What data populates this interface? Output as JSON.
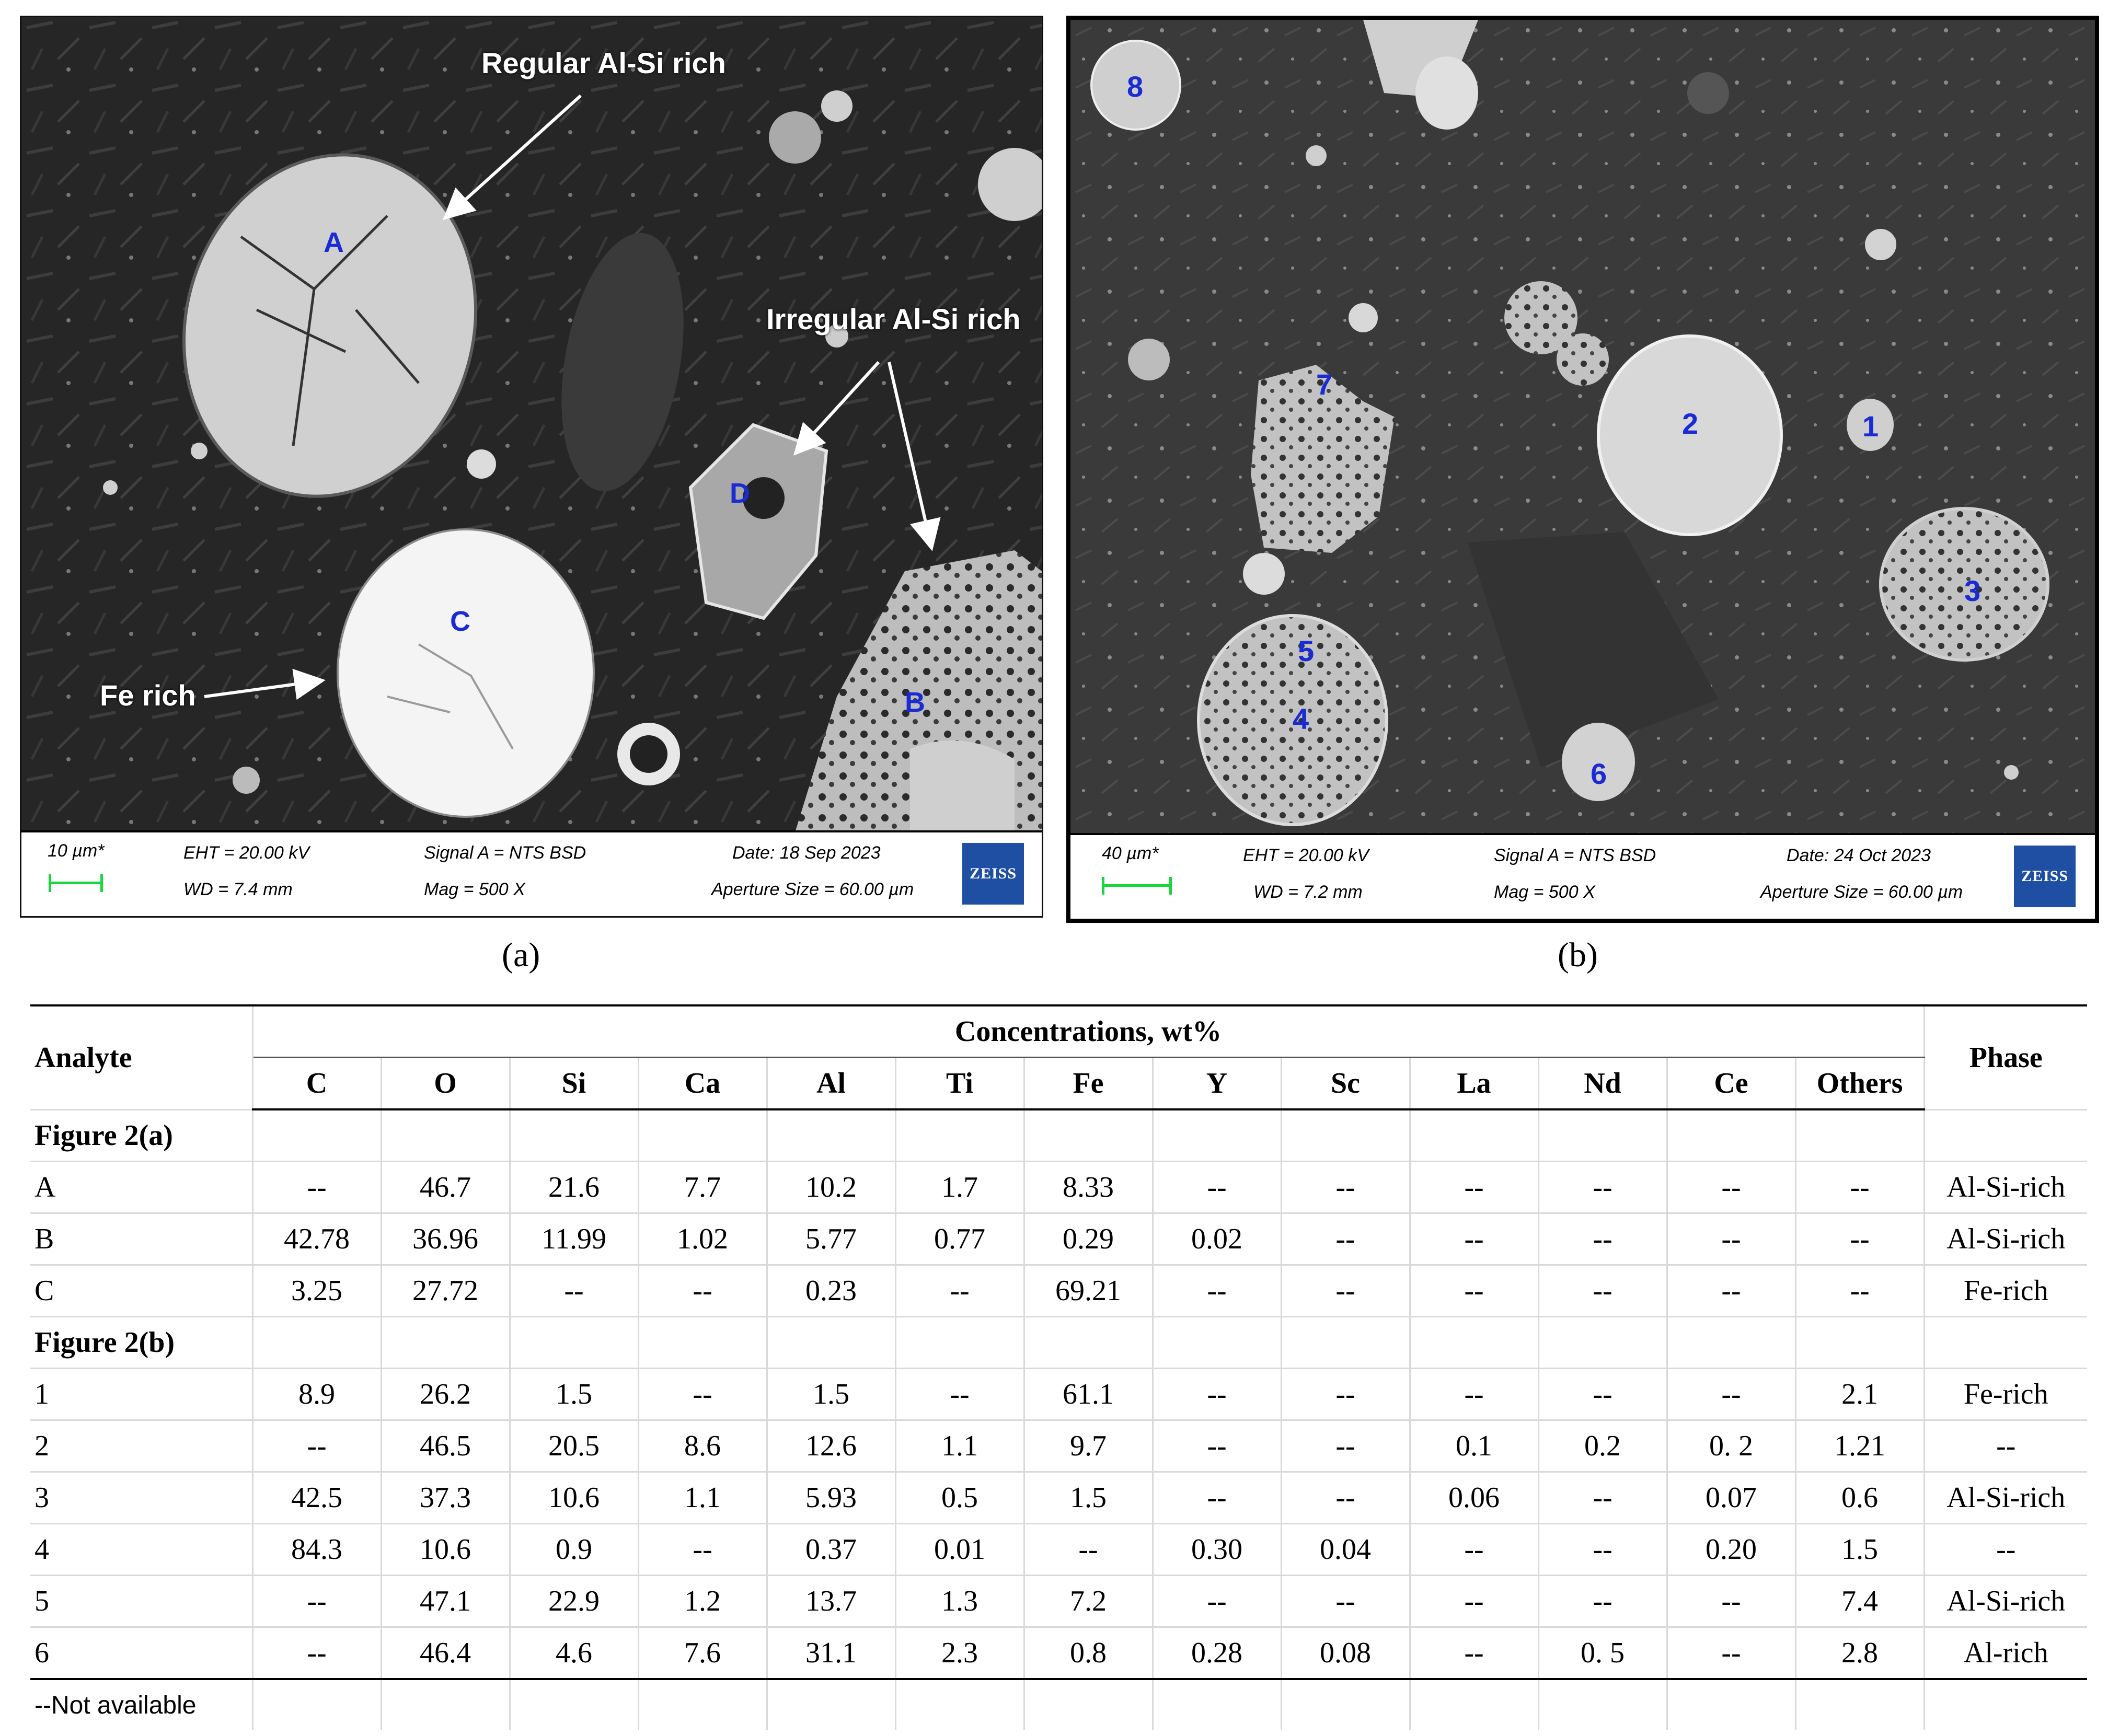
{
  "panel_a": {
    "callouts": {
      "regular": "Regular Al-Si rich",
      "irregular": "Irregular Al-Si rich",
      "fe_rich": "Fe rich"
    },
    "markers": [
      "A",
      "B",
      "C",
      "D"
    ],
    "databar": {
      "scale": "10 µm*",
      "eht": "EHT = 20.00 kV",
      "wd": "WD =  7.4 mm",
      "signal": "Signal A = NTS BSD",
      "mag": "Mag =   500 X",
      "date": "Date: 18 Sep 2023",
      "aperture": "Aperture Size = 60.00 µm",
      "logo": "ZEISS"
    },
    "caption": "(a)"
  },
  "panel_b": {
    "markers": [
      "1",
      "2",
      "3",
      "4",
      "5",
      "6",
      "7",
      "8"
    ],
    "databar": {
      "scale": "40 µm*",
      "eht": "EHT = 20.00 kV",
      "wd": "WD =  7.2 mm",
      "signal": "Signal A = NTS BSD",
      "mag": "Mag =   500 X",
      "date": "Date: 24 Oct 2023",
      "aperture": "Aperture Size = 60.00 µm",
      "logo": "ZEISS"
    },
    "caption": "(b)"
  },
  "table": {
    "header": {
      "analyte": "Analyte",
      "concentrations": "Concentrations, wt%",
      "phase": "Phase",
      "columns": [
        "C",
        "O",
        "Si",
        "Ca",
        "Al",
        "Ti",
        "Fe",
        "Y",
        "Sc",
        "La",
        "Nd",
        "Ce",
        "Others"
      ]
    },
    "sections": [
      {
        "title": "Figure 2(a)",
        "rows": [
          {
            "analyte": "A",
            "values": [
              "--",
              "46.7",
              "21.6",
              "7.7",
              "10.2",
              "1.7",
              "8.33",
              "--",
              "--",
              "--",
              "--",
              "--",
              "--"
            ],
            "phase": "Al-Si-rich"
          },
          {
            "analyte": "B",
            "values": [
              "42.78",
              "36.96",
              "11.99",
              "1.02",
              "5.77",
              "0.77",
              "0.29",
              "0.02",
              "--",
              "--",
              "--",
              "--",
              "--"
            ],
            "phase": "Al-Si-rich"
          },
          {
            "analyte": "C",
            "values": [
              "3.25",
              "27.72",
              "--",
              "--",
              "0.23",
              "--",
              "69.21",
              "--",
              "--",
              "--",
              "--",
              "--",
              "--"
            ],
            "phase": "Fe-rich"
          }
        ]
      },
      {
        "title": "Figure 2(b)",
        "rows": [
          {
            "analyte": "1",
            "values": [
              "8.9",
              "26.2",
              "1.5",
              "--",
              "1.5",
              "--",
              "61.1",
              "--",
              "--",
              "--",
              "--",
              "--",
              "2.1"
            ],
            "phase": "Fe-rich"
          },
          {
            "analyte": "2",
            "values": [
              "--",
              "46.5",
              "20.5",
              "8.6",
              "12.6",
              "1.1",
              "9.7",
              "--",
              "--",
              "0.1",
              "0.2",
              "0. 2",
              "1.21"
            ],
            "phase": "--"
          },
          {
            "analyte": "3",
            "values": [
              "42.5",
              "37.3",
              "10.6",
              "1.1",
              "5.93",
              "0.5",
              "1.5",
              "--",
              "--",
              "0.06",
              "--",
              "0.07",
              "0.6"
            ],
            "phase": "Al-Si-rich"
          },
          {
            "analyte": "4",
            "values": [
              "84.3",
              "10.6",
              "0.9",
              "--",
              "0.37",
              "0.01",
              "--",
              "0.30",
              "0.04",
              "--",
              "--",
              "0.20",
              "1.5"
            ],
            "phase": "--"
          },
          {
            "analyte": "5",
            "values": [
              "--",
              "47.1",
              "22.9",
              "1.2",
              "13.7",
              "1.3",
              "7.2",
              "--",
              "--",
              "--",
              "--",
              "--",
              "7.4"
            ],
            "phase": "Al-Si-rich"
          },
          {
            "analyte": "6",
            "values": [
              "--",
              "46.4",
              "4.6",
              "7.6",
              "31.1",
              "2.3",
              "0.8",
              "0.28",
              "0.08",
              "--",
              "0. 5",
              "--",
              "2.8"
            ],
            "phase": "Al-rich"
          }
        ]
      }
    ],
    "note": "--Not available"
  }
}
